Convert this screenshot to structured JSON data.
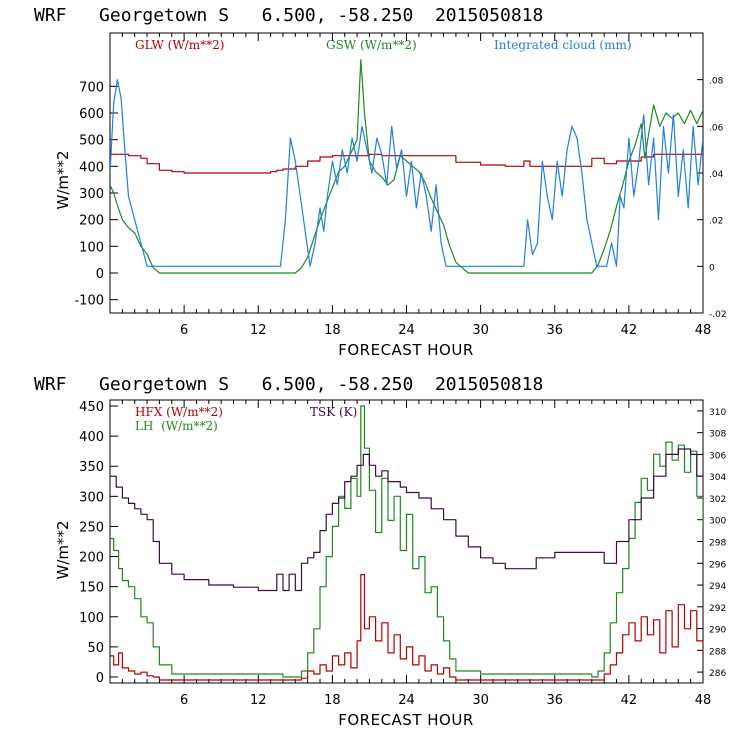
{
  "colors": {
    "red": "#b30000",
    "green": "#1e8a1e",
    "blue": "#1f7fe0",
    "purple": "#3c0a46",
    "axis": "#000000"
  },
  "chart_data": [
    {
      "type": "line",
      "title": "WRF   Georgetown S   6.500, -58.250  2015050818",
      "xlabel": "FORECAST HOUR",
      "ylabel": "W/m**2",
      "xlim": [
        0,
        48
      ],
      "ylim": [
        -150,
        900
      ],
      "xticks": [
        6,
        12,
        18,
        24,
        30,
        36,
        42,
        48
      ],
      "yticks": [
        -100,
        0,
        100,
        200,
        300,
        400,
        500,
        600,
        700
      ],
      "right_axis": {
        "ylim": [
          -0.02,
          0.1
        ],
        "ticks": [
          -0.02,
          0,
          0.02,
          0.04,
          0.06,
          0.08
        ],
        "tick_labels": [
          "-.02",
          "0",
          ".02",
          ".04",
          ".06",
          ".08"
        ]
      },
      "legend": [
        "GLW (W/m**2)",
        "GSW (W/m**2)",
        "Integrated cloud (mm)"
      ],
      "series": [
        {
          "name": "GLW (W/m**2)",
          "axis": "left",
          "color_key": "red",
          "step": true,
          "x": [
            0,
            0.8,
            1.5,
            2.5,
            3,
            4,
            5,
            6,
            8,
            10,
            12,
            13,
            13.5,
            14,
            15,
            16,
            17,
            18,
            19,
            20,
            21,
            22,
            23,
            24,
            25,
            26,
            27,
            28,
            30,
            32,
            33,
            33.5,
            34,
            35,
            36,
            37,
            38,
            39,
            40,
            41,
            42,
            43,
            44,
            45,
            46,
            47,
            48
          ],
          "y": [
            445,
            445,
            440,
            430,
            410,
            385,
            380,
            375,
            375,
            375,
            375,
            380,
            385,
            390,
            400,
            420,
            435,
            440,
            440,
            440,
            445,
            440,
            440,
            440,
            440,
            440,
            440,
            415,
            405,
            400,
            400,
            420,
            400,
            400,
            400,
            400,
            400,
            430,
            410,
            420,
            420,
            435,
            445,
            445,
            445,
            445,
            445
          ]
        },
        {
          "name": "GSW (W/m**2)",
          "axis": "left",
          "color_key": "green",
          "step": false,
          "x": [
            0,
            0.3,
            0.7,
            1,
            1.5,
            2,
            2.5,
            3,
            3.5,
            4,
            14,
            15,
            15.5,
            16,
            16.5,
            17,
            17.5,
            18,
            18.5,
            19,
            19.5,
            20,
            20.3,
            20.6,
            21,
            21.5,
            22,
            22.5,
            23,
            23.5,
            24,
            24.5,
            25,
            25.5,
            26,
            26.5,
            27,
            27.5,
            28,
            29,
            38,
            39,
            39.5,
            40,
            40.5,
            41,
            41.5,
            42,
            42.5,
            43,
            43.3,
            43.6,
            44,
            44.5,
            45,
            45.5,
            46,
            46.5,
            47,
            47.5,
            48
          ],
          "y": [
            330,
            300,
            240,
            200,
            170,
            150,
            100,
            70,
            20,
            0,
            0,
            0,
            20,
            60,
            130,
            200,
            260,
            320,
            380,
            400,
            450,
            500,
            800,
            600,
            420,
            380,
            360,
            330,
            350,
            440,
            420,
            400,
            380,
            340,
            280,
            230,
            180,
            100,
            40,
            0,
            0,
            0,
            30,
            90,
            160,
            250,
            330,
            420,
            480,
            560,
            430,
            520,
            630,
            550,
            600,
            580,
            600,
            560,
            610,
            560,
            610
          ]
        },
        {
          "name": "Integrated cloud (mm)",
          "axis": "right",
          "color_key": "blue",
          "step": false,
          "x": [
            0,
            0.3,
            0.6,
            0.9,
            1.2,
            1.5,
            2,
            2.5,
            3,
            3.3,
            13.8,
            14.2,
            14.6,
            15,
            15.4,
            15.8,
            16.2,
            16.6,
            17,
            17.3,
            17.6,
            18,
            18.4,
            18.8,
            19.2,
            19.6,
            20,
            20.4,
            20.8,
            21.2,
            21.6,
            22,
            22.4,
            22.8,
            23.2,
            23.6,
            24,
            24.4,
            24.8,
            25.2,
            25.6,
            26,
            26.4,
            26.8,
            27.2,
            33.5,
            33.8,
            34.2,
            34.6,
            35,
            35.4,
            35.8,
            36.2,
            36.6,
            37,
            37.4,
            37.8,
            38.2,
            38.6,
            39,
            39.4,
            39.8,
            40.2,
            40.6,
            41,
            41.3,
            41.6,
            42,
            42.4,
            42.8,
            43.2,
            43.6,
            44,
            44.4,
            44.8,
            45.2,
            45.6,
            46,
            46.4,
            46.8,
            47.2,
            47.6,
            48
          ],
          "y": [
            0.04,
            0.07,
            0.08,
            0.072,
            0.05,
            0.03,
            0.02,
            0.01,
            0,
            0,
            0,
            0.02,
            0.055,
            0.045,
            0.03,
            0.015,
            0,
            0.01,
            0.025,
            0.015,
            0.03,
            0.045,
            0.035,
            0.05,
            0.04,
            0.055,
            0.045,
            0.06,
            0.05,
            0.04,
            0.055,
            0.048,
            0.035,
            0.06,
            0.042,
            0.05,
            0.03,
            0.045,
            0.025,
            0.04,
            0.03,
            0.015,
            0.035,
            0.01,
            0,
            0,
            0.02,
            0.005,
            0.01,
            0.045,
            0.03,
            0.02,
            0.045,
            0.03,
            0.05,
            0.06,
            0.055,
            0.04,
            0.02,
            0.01,
            0,
            0,
            0,
            0.01,
            0,
            0.03,
            0.025,
            0.055,
            0.03,
            0.045,
            0.065,
            0.035,
            0.055,
            0.02,
            0.06,
            0.04,
            0.065,
            0.03,
            0.05,
            0.025,
            0.06,
            0.035,
            0.055
          ]
        }
      ]
    },
    {
      "type": "line",
      "title": "WRF   Georgetown S   6.500, -58.250  2015050818",
      "xlabel": "FORECAST HOUR",
      "ylabel": "W/m**2",
      "xlim": [
        0,
        48
      ],
      "ylim": [
        -10,
        460
      ],
      "xticks": [
        6,
        12,
        18,
        24,
        30,
        36,
        42,
        48
      ],
      "yticks": [
        0,
        50,
        100,
        150,
        200,
        250,
        300,
        350,
        400,
        450
      ],
      "right_axis": {
        "ylim": [
          285,
          311
        ],
        "ticks": [
          286,
          288,
          290,
          292,
          294,
          296,
          298,
          300,
          302,
          304,
          306,
          308,
          310
        ],
        "tick_labels": [
          "286",
          "288",
          "290",
          "292",
          "294",
          "296",
          "298",
          "300",
          "302",
          "304",
          "306",
          "308",
          "310"
        ]
      },
      "legend": [
        "HFX (W/m**2)",
        "LH  (W/m**2)",
        "TSK (K)"
      ],
      "series": [
        {
          "name": "HFX (W/m**2)",
          "axis": "left",
          "color_key": "red",
          "step": true,
          "x": [
            0,
            0.3,
            0.7,
            1,
            1.5,
            2,
            2.5,
            3,
            3.5,
            4,
            14,
            15.5,
            16,
            16.5,
            17,
            17.5,
            18,
            18.5,
            19,
            19.5,
            20,
            20.3,
            20.6,
            21,
            21.5,
            22,
            22.5,
            23,
            23.5,
            24,
            24.5,
            25,
            25.5,
            26,
            26.5,
            27,
            27.5,
            28,
            39,
            40,
            40.5,
            41,
            41.5,
            42,
            42.5,
            43,
            43.5,
            44,
            44.5,
            45,
            45.5,
            46,
            46.5,
            47,
            47.5,
            48
          ],
          "y": [
            35,
            20,
            40,
            15,
            10,
            5,
            8,
            2,
            0,
            -5,
            -5,
            -2,
            10,
            5,
            20,
            10,
            35,
            20,
            40,
            15,
            60,
            170,
            80,
            100,
            60,
            90,
            40,
            70,
            30,
            50,
            20,
            35,
            10,
            20,
            5,
            15,
            0,
            -5,
            -5,
            5,
            20,
            40,
            70,
            90,
            60,
            100,
            70,
            95,
            40,
            110,
            50,
            120,
            80,
            110,
            60,
            30
          ]
        },
        {
          "name": "LH  (W/m**2)",
          "axis": "left",
          "color_key": "green",
          "step": true,
          "x": [
            0,
            0.3,
            0.7,
            1,
            1.5,
            2,
            2.5,
            3,
            3.5,
            4,
            5,
            14,
            15,
            15.5,
            16,
            16.5,
            17,
            17.5,
            18,
            18.5,
            19,
            19.5,
            20,
            20.3,
            20.6,
            21,
            21.5,
            22,
            22.5,
            23,
            23.5,
            24,
            24.5,
            25,
            25.5,
            26,
            26.5,
            27,
            27.5,
            28,
            30,
            38,
            39,
            39.5,
            40,
            40.5,
            41,
            41.5,
            42,
            42.5,
            43,
            43.5,
            44,
            44.5,
            45,
            45.5,
            46,
            46.5,
            47,
            47.5,
            48
          ],
          "y": [
            230,
            210,
            180,
            160,
            150,
            130,
            100,
            90,
            50,
            20,
            5,
            0,
            0,
            10,
            40,
            80,
            150,
            200,
            250,
            300,
            280,
            330,
            300,
            450,
            380,
            310,
            240,
            330,
            260,
            300,
            210,
            270,
            180,
            200,
            140,
            150,
            100,
            60,
            30,
            10,
            5,
            5,
            0,
            10,
            40,
            90,
            140,
            180,
            230,
            290,
            330,
            310,
            370,
            350,
            390,
            360,
            385,
            340,
            375,
            300,
            250
          ]
        },
        {
          "name": "TSK (K)",
          "axis": "right",
          "color_key": "purple",
          "step": true,
          "x": [
            0,
            0.5,
            1,
            1.5,
            2,
            2.5,
            3,
            3.5,
            4,
            5,
            6,
            8,
            10,
            12,
            13,
            13.5,
            14,
            14.5,
            15,
            15.5,
            16,
            16.5,
            17,
            17.5,
            18,
            18.5,
            19,
            19.5,
            20,
            20.5,
            21,
            21.5,
            22,
            22.5,
            23,
            23.5,
            24,
            25,
            26,
            27,
            28,
            29,
            30,
            31,
            32,
            33,
            34,
            34.5,
            35,
            36,
            37,
            38,
            39,
            40,
            41,
            42,
            43,
            44,
            45,
            46,
            47,
            47.5,
            48
          ],
          "y": [
            304,
            303,
            302,
            301.5,
            301,
            300.5,
            300,
            298,
            296,
            295,
            294.5,
            294,
            293.8,
            293.5,
            293.5,
            295,
            293.5,
            295,
            293.5,
            296,
            296.5,
            297,
            299,
            300.5,
            301.5,
            302,
            303.5,
            304,
            305,
            306,
            305,
            304,
            304.5,
            303.5,
            303.5,
            303,
            302.5,
            302,
            301,
            300,
            298.5,
            297.5,
            296.5,
            296,
            295.5,
            295.5,
            295.5,
            296.5,
            296.5,
            297,
            297,
            297,
            297,
            296,
            298,
            300,
            302,
            304,
            306,
            306.5,
            306,
            304,
            303
          ]
        }
      ]
    }
  ]
}
